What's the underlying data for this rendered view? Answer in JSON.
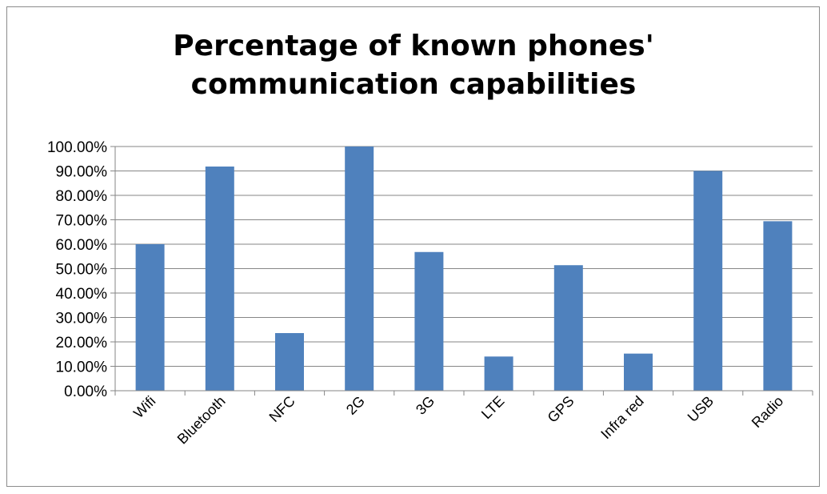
{
  "chart_data": {
    "type": "bar",
    "title_lines": [
      "Percentage of known phones'",
      "communication capabilities"
    ],
    "categories": [
      "Wifi",
      "Bluetooth",
      "NFC",
      "2G",
      "3G",
      "LTE",
      "GPS",
      "Infra red",
      "USB",
      "Radio"
    ],
    "values": [
      60.0,
      91.8,
      23.6,
      100.0,
      56.8,
      14.0,
      51.4,
      15.2,
      90.0,
      69.4
    ],
    "y_ticks": [
      "0.00%",
      "10.00%",
      "20.00%",
      "30.00%",
      "40.00%",
      "50.00%",
      "60.00%",
      "70.00%",
      "80.00%",
      "90.00%",
      "100.00%"
    ],
    "ylim": [
      0,
      100
    ],
    "grid": true,
    "legend": "none",
    "bar_color": "#4f81bd",
    "grid_color": "#868686"
  }
}
